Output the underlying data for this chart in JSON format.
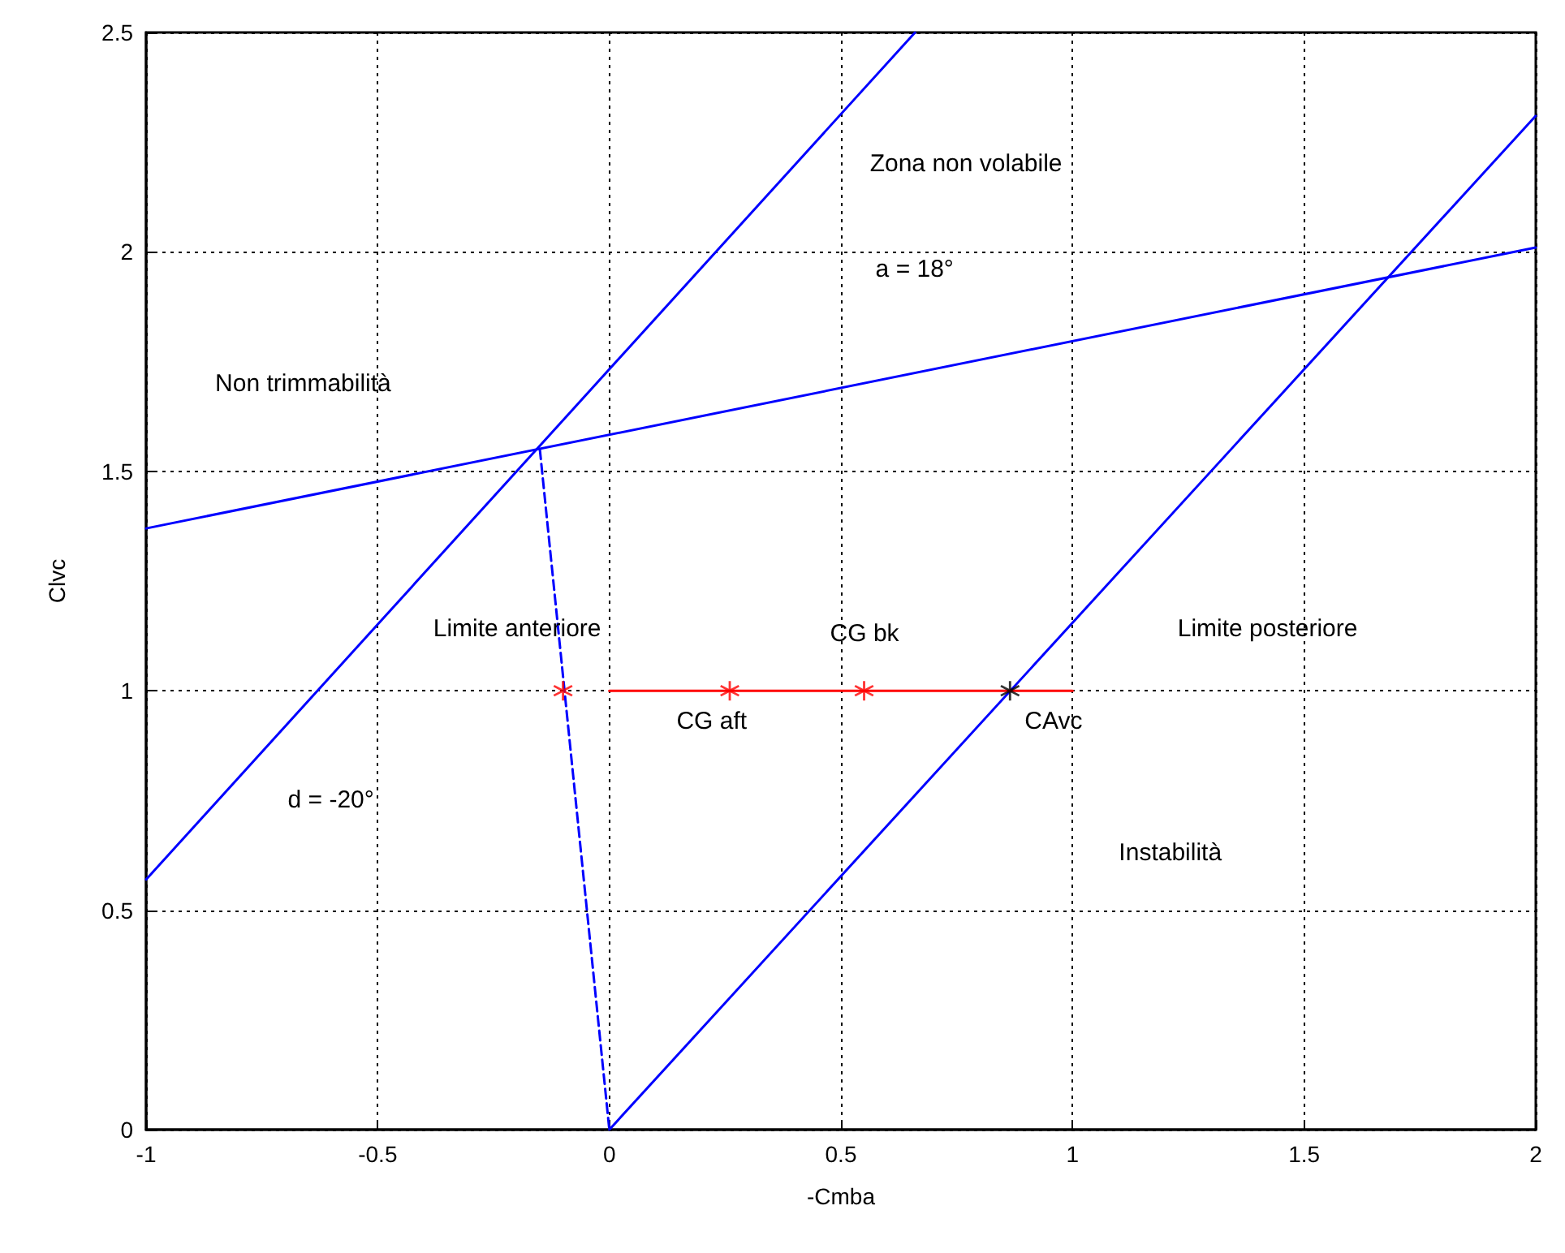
{
  "chart_data": {
    "type": "line",
    "xlabel": "-Cmba",
    "ylabel": "Clvc",
    "xlim": [
      -1,
      2
    ],
    "xticks": [
      -1,
      -0.5,
      0,
      0.5,
      1,
      1.5,
      2
    ],
    "ylim": [
      0,
      2.5
    ],
    "yticks": [
      0,
      0.5,
      1,
      1.5,
      2,
      2.5
    ],
    "grid": true,
    "series": [
      {
        "color": "#0000ff",
        "x": [
          -1,
          0.66
        ],
        "values": [
          0.57,
          2.5
        ],
        "marker": "none",
        "line_style": "solid"
      },
      {
        "color": "#0000ff",
        "x": [
          0,
          2
        ],
        "values": [
          0,
          2.31
        ],
        "marker": "none",
        "line_style": "solid"
      },
      {
        "color": "#0000ff",
        "x": [
          -1,
          2
        ],
        "values": [
          1.37,
          2.01
        ],
        "marker": "none",
        "line_style": "solid"
      },
      {
        "color": "#0000ff",
        "x": [
          -0.15,
          0
        ],
        "values": [
          1.55,
          0
        ],
        "marker": "none",
        "line_style": "dashed"
      },
      {
        "color": "#ff0000",
        "x": [
          0,
          1
        ],
        "values": [
          1,
          1
        ],
        "marker": "none",
        "line_style": "solid"
      },
      {
        "type": "scatter",
        "color": "#ff0000",
        "x": [
          -0.1,
          0.26,
          0.55
        ],
        "values": [
          1,
          1,
          1
        ],
        "marker": "star"
      },
      {
        "type": "scatter",
        "color": "#000000",
        "x": [
          0.865
        ],
        "values": [
          1
        ],
        "marker": "star"
      }
    ],
    "annotations": [
      "Zona non volabile",
      "a = 18°",
      "Non trimmabilità",
      "Limite anteriore",
      "CG bk",
      "Limite posteriore",
      "CG aft",
      "CAvc",
      "d = -20°",
      "Instabilità"
    ]
  }
}
